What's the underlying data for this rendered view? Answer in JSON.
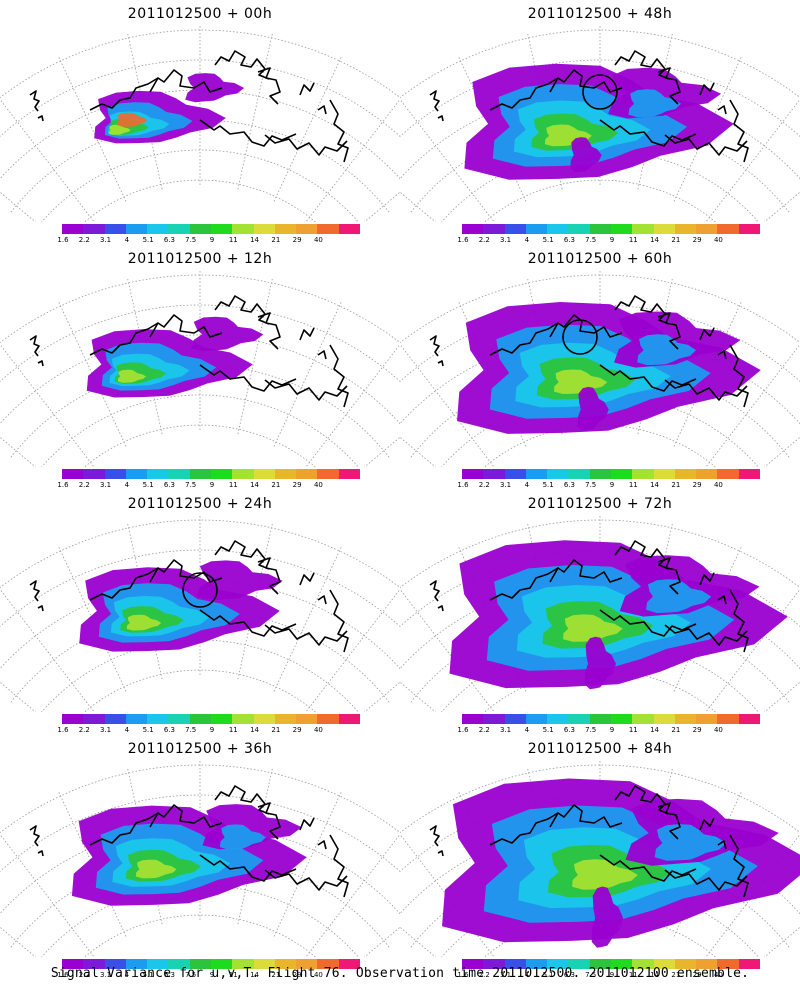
{
  "figure": {
    "caption": "Signal Variance for u,v,T. Flight 76. Observation time 2011012500. 2011012100 ensemble."
  },
  "colorbar": {
    "labels": [
      "1.6",
      "2.2",
      "3.1",
      "4",
      "5.1",
      "6.3",
      "7.5",
      "9",
      "11",
      "14",
      "21",
      "29",
      "40"
    ],
    "colors": [
      "#9a00d0",
      "#7d1ad8",
      "#3a4ee8",
      "#1c9cef",
      "#1ac6ea",
      "#19d2b4",
      "#2cc43c",
      "#1fdb1f",
      "#a3e233",
      "#dbdb3a",
      "#e8b52c",
      "#eea030",
      "#f06a2e",
      "#ef1874"
    ]
  },
  "panels": [
    {
      "title": "2011012500 + 00h",
      "hours": 0,
      "circle": false,
      "intensity": 0.6
    },
    {
      "title": "2011012500 + 48h",
      "hours": 48,
      "circle": true,
      "intensity": 1.0
    },
    {
      "title": "2011012500 + 12h",
      "hours": 12,
      "circle": false,
      "intensity": 0.7
    },
    {
      "title": "2011012500 + 60h",
      "hours": 60,
      "circle": true,
      "intensity": 1.1
    },
    {
      "title": "2011012500 + 24h",
      "hours": 24,
      "circle": true,
      "intensity": 0.85
    },
    {
      "title": "2011012500 + 72h",
      "hours": 72,
      "circle": false,
      "intensity": 1.2
    },
    {
      "title": "2011012500 + 36h",
      "hours": 36,
      "circle": false,
      "intensity": 0.95
    },
    {
      "title": "2011012500 + 84h",
      "hours": 84,
      "circle": false,
      "intensity": 1.3
    }
  ]
}
